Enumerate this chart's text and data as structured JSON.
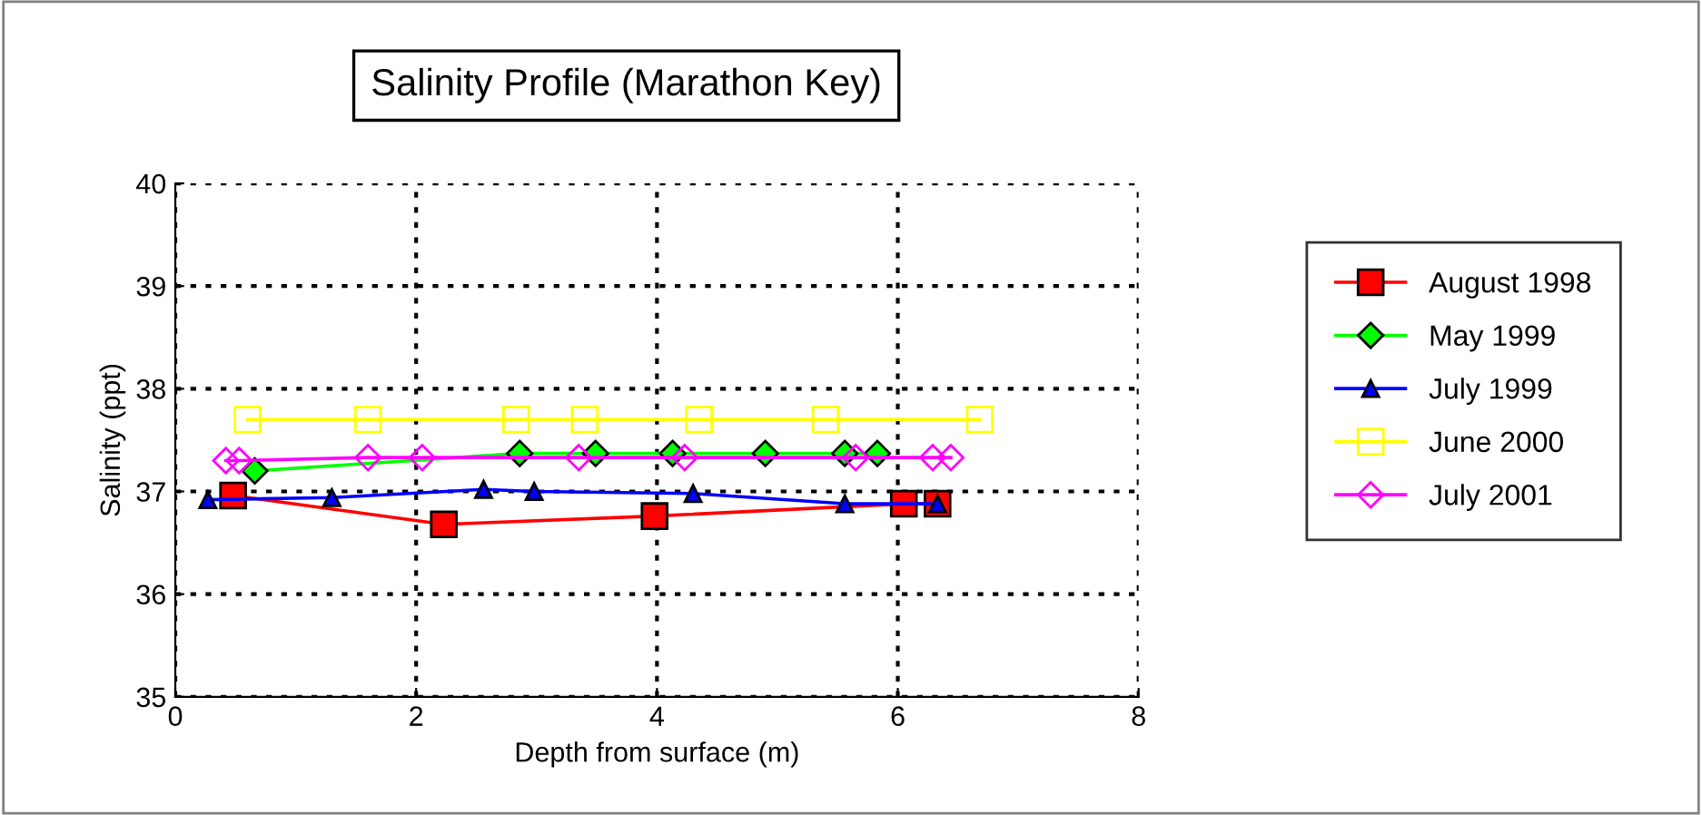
{
  "chart_data": {
    "type": "line",
    "title": "Salinity Profile (Marathon Key)",
    "xlabel": "Depth from surface (m)",
    "ylabel": "Salinity (ppt)",
    "xlim": [
      0,
      8
    ],
    "xticks": [
      0,
      2,
      4,
      6,
      8
    ],
    "ylim": [
      35,
      40
    ],
    "yticks": [
      35,
      36,
      37,
      38,
      39,
      40
    ],
    "grid": true,
    "legend": "right",
    "series": [
      {
        "name": "August 1998",
        "color": "#ff0000",
        "marker": "square",
        "x": [
          0.48,
          2.23,
          3.98,
          6.05,
          6.33
        ],
        "values": [
          36.96,
          36.68,
          36.76,
          36.88,
          36.88
        ]
      },
      {
        "name": "May 1999",
        "color": "#00ff00",
        "marker": "diamond",
        "x": [
          0.66,
          2.86,
          3.49,
          4.13,
          4.9,
          5.56,
          5.83
        ],
        "values": [
          37.2,
          37.37,
          37.37,
          37.37,
          37.37,
          37.37,
          37.37
        ]
      },
      {
        "name": "July 1999",
        "color": "#0000ff",
        "marker": "triangle",
        "x": [
          0.27,
          1.3,
          2.56,
          2.98,
          4.3,
          5.56,
          6.33
        ],
        "values": [
          36.92,
          36.94,
          37.02,
          37.0,
          36.98,
          36.88,
          36.88
        ]
      },
      {
        "name": "June 2000",
        "color": "#ffff00",
        "marker": "square",
        "x": [
          0.6,
          1.6,
          2.83,
          3.4,
          4.35,
          5.4,
          6.68
        ],
        "values": [
          37.7,
          37.7,
          37.7,
          37.7,
          37.7,
          37.7,
          37.7
        ]
      },
      {
        "name": "July 2001",
        "color": "#ff00ff",
        "marker": "diamond",
        "x": [
          0.42,
          0.53,
          1.6,
          2.05,
          3.35,
          4.23,
          5.65,
          6.29,
          6.44
        ],
        "values": [
          37.3,
          37.3,
          37.33,
          37.33,
          37.33,
          37.33,
          37.33,
          37.33,
          37.33
        ]
      }
    ]
  }
}
